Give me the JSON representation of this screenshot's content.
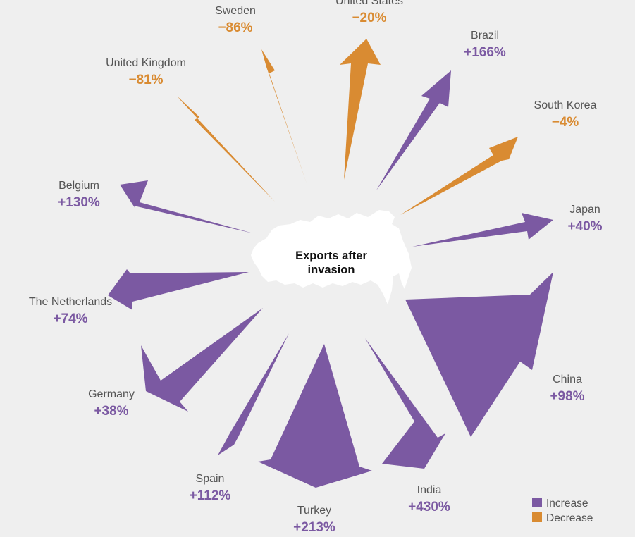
{
  "chart_data": {
    "type": "radial-arrows",
    "center_label_lines": [
      "Exports after",
      "invasion"
    ],
    "colors": {
      "increase": "#7b59a2",
      "decrease": "#d98b32"
    },
    "legend": [
      {
        "key": "increase",
        "label": "Increase"
      },
      {
        "key": "decrease",
        "label": "Decrease"
      }
    ],
    "series": [
      {
        "country": "United States",
        "change_label": "−20%",
        "change": -20,
        "kind": "decrease"
      },
      {
        "country": "Brazil",
        "change_label": "+166%",
        "change": 166,
        "kind": "increase"
      },
      {
        "country": "South Korea",
        "change_label": "−4%",
        "change": -4,
        "kind": "decrease"
      },
      {
        "country": "Japan",
        "change_label": "+40%",
        "change": 40,
        "kind": "increase"
      },
      {
        "country": "China",
        "change_label": "+98%",
        "change": 98,
        "kind": "increase"
      },
      {
        "country": "India",
        "change_label": "+430%",
        "change": 430,
        "kind": "increase"
      },
      {
        "country": "Turkey",
        "change_label": "+213%",
        "change": 213,
        "kind": "increase"
      },
      {
        "country": "Spain",
        "change_label": "+112%",
        "change": 112,
        "kind": "increase"
      },
      {
        "country": "Germany",
        "change_label": "+38%",
        "change": 38,
        "kind": "increase"
      },
      {
        "country": "The Netherlands",
        "change_label": "+74%",
        "change": 74,
        "kind": "increase"
      },
      {
        "country": "Belgium",
        "change_label": "+130%",
        "change": 130,
        "kind": "increase"
      },
      {
        "country": "United Kingdom",
        "change_label": "−81%",
        "change": -81,
        "kind": "decrease"
      },
      {
        "country": "Sweden",
        "change_label": "−86%",
        "change": -86,
        "kind": "decrease"
      }
    ]
  }
}
